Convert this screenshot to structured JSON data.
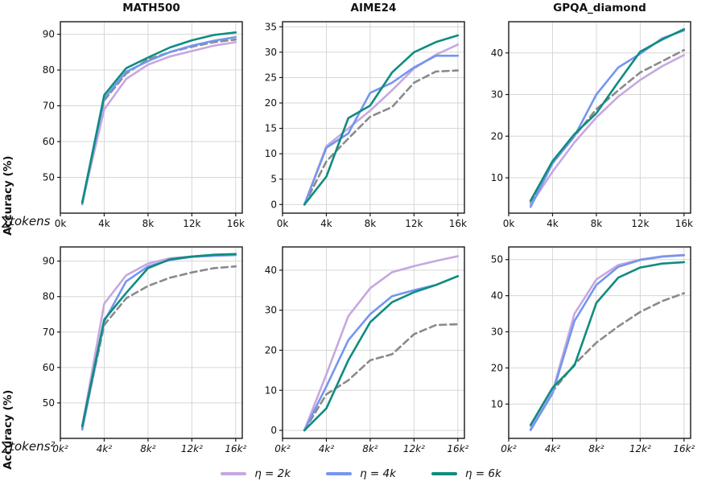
{
  "figure": {
    "background": "#ffffff"
  },
  "colors": {
    "eta2k": "#c7a7e0",
    "eta4k": "#7496ee",
    "eta6k": "#0f8c7f",
    "dashed_gray": "#8a8a8a",
    "grid": "#d6d6d6",
    "spine": "#1a1a1a"
  },
  "legend": {
    "entries": [
      {
        "label": "η = 2k",
        "color": "#c7a7e0"
      },
      {
        "label": "η = 4k",
        "color": "#7496ee"
      },
      {
        "label": "η = 6k",
        "color": "#0f8c7f"
      }
    ]
  },
  "chart_data": [
    {
      "type": "line",
      "title": "MATH500",
      "ylabel": "Accuracy (%)",
      "xlabel": "∑tokens",
      "x": [
        2,
        4,
        6,
        8,
        10,
        12,
        14,
        16
      ],
      "xlim": [
        0,
        16.6
      ],
      "ylim": [
        40,
        93.5
      ],
      "xticks": {
        "values": [
          0,
          4,
          8,
          12,
          16
        ],
        "labels": [
          "0k",
          "4k",
          "8k",
          "12k",
          "16k"
        ]
      },
      "yticks": {
        "values": [
          50,
          60,
          70,
          80,
          90
        ],
        "labels": [
          "50",
          "60",
          "70",
          "80",
          "90"
        ]
      },
      "xtick_style": "upright",
      "grid": true,
      "series": [
        {
          "name": "dashed-gray (unlabeled)",
          "color": "#8a8a8a",
          "dash": true,
          "values": [
            43,
            71.5,
            79,
            83,
            85,
            86.5,
            87.8,
            88.5
          ]
        },
        {
          "name": "η = 2k",
          "color": "#c7a7e0",
          "dash": false,
          "values": [
            43,
            69,
            77.5,
            81.5,
            83.8,
            85.3,
            86.8,
            87.8
          ]
        },
        {
          "name": "η = 4k",
          "color": "#7496ee",
          "dash": false,
          "values": [
            42.5,
            72,
            79.5,
            82.5,
            85,
            86.8,
            88.2,
            89.2
          ]
        },
        {
          "name": "η = 6k",
          "color": "#0f8c7f",
          "dash": false,
          "values": [
            43,
            73,
            80.5,
            83.5,
            86.3,
            88.3,
            89.8,
            90.5
          ]
        }
      ]
    },
    {
      "type": "line",
      "title": "AIME24",
      "ylabel": "",
      "xlabel": "",
      "x": [
        2,
        4,
        6,
        8,
        10,
        12,
        14,
        16
      ],
      "xlim": [
        0,
        16.6
      ],
      "ylim": [
        -1.7,
        36
      ],
      "xticks": {
        "values": [
          0,
          4,
          8,
          12,
          16
        ],
        "labels": [
          "0k",
          "4k",
          "8k",
          "12k",
          "16k"
        ]
      },
      "yticks": {
        "values": [
          0,
          5,
          10,
          15,
          20,
          25,
          30,
          35
        ],
        "labels": [
          "0",
          "5",
          "10",
          "15",
          "20",
          "25",
          "30",
          "35"
        ]
      },
      "xtick_style": "upright",
      "grid": true,
      "series": [
        {
          "name": "dashed-gray (unlabeled)",
          "color": "#8a8a8a",
          "dash": true,
          "values": [
            0,
            8.5,
            13,
            17.3,
            19.2,
            24,
            26.2,
            26.4
          ]
        },
        {
          "name": "η = 2k",
          "color": "#c7a7e0",
          "dash": false,
          "values": [
            0,
            11.5,
            15,
            18.5,
            22.5,
            26.8,
            29.5,
            31.5
          ]
        },
        {
          "name": "η = 4k",
          "color": "#7496ee",
          "dash": false,
          "values": [
            0,
            11.2,
            14,
            22,
            24,
            27,
            29.3,
            29.3
          ]
        },
        {
          "name": "η = 6k",
          "color": "#0f8c7f",
          "dash": false,
          "values": [
            0,
            5.5,
            17,
            19.5,
            26,
            30,
            32,
            33.3
          ]
        }
      ]
    },
    {
      "type": "line",
      "title": "GPQA_diamond",
      "ylabel": "",
      "xlabel": "",
      "x": [
        2,
        4,
        6,
        8,
        10,
        12,
        14,
        16
      ],
      "xlim": [
        0,
        16.6
      ],
      "ylim": [
        1.5,
        47.5
      ],
      "xticks": {
        "values": [
          0,
          4,
          8,
          12,
          16
        ],
        "labels": [
          "0k",
          "4k",
          "8k",
          "12k",
          "16k"
        ]
      },
      "yticks": {
        "values": [
          10,
          20,
          30,
          40
        ],
        "labels": [
          "10",
          "20",
          "30",
          "40"
        ]
      },
      "xtick_style": "upright",
      "grid": true,
      "series": [
        {
          "name": "dashed-gray (unlabeled)",
          "color": "#8a8a8a",
          "dash": true,
          "values": [
            4,
            13.5,
            20,
            26.5,
            31,
            35.3,
            38,
            40.7
          ]
        },
        {
          "name": "η = 2k",
          "color": "#c7a7e0",
          "dash": false,
          "values": [
            3.5,
            11.5,
            18.5,
            24.5,
            29.5,
            33.5,
            36.8,
            39.5
          ]
        },
        {
          "name": "η = 4k",
          "color": "#7496ee",
          "dash": false,
          "values": [
            3,
            13.5,
            20,
            30,
            36.5,
            39.8,
            43.5,
            45.4
          ]
        },
        {
          "name": "η = 6k",
          "color": "#0f8c7f",
          "dash": false,
          "values": [
            4.5,
            14,
            20.5,
            25.5,
            33,
            40.3,
            43.2,
            45.7
          ]
        }
      ]
    },
    {
      "type": "line",
      "title": "",
      "ylabel": "Accuracy (%)",
      "xlabel": "∑tokens²",
      "x": [
        2,
        4,
        6,
        8,
        10,
        12,
        14,
        16
      ],
      "xlim": [
        0,
        16.6
      ],
      "ylim": [
        40,
        94
      ],
      "xticks": {
        "values": [
          0,
          4,
          8,
          12,
          16
        ],
        "labels": [
          "0k²",
          "4k²",
          "8k²",
          "12k²",
          "16k²"
        ]
      },
      "yticks": {
        "values": [
          50,
          60,
          70,
          80,
          90
        ],
        "labels": [
          "50",
          "60",
          "70",
          "80",
          "90"
        ]
      },
      "xtick_style": "italic",
      "grid": true,
      "series": [
        {
          "name": "dashed-gray (unlabeled)",
          "color": "#8a8a8a",
          "dash": true,
          "values": [
            43,
            72,
            79.5,
            83,
            85.3,
            86.8,
            88,
            88.5
          ]
        },
        {
          "name": "η = 2k",
          "color": "#c7a7e0",
          "dash": false,
          "values": [
            43.5,
            78,
            86,
            89.3,
            90.8,
            91.3,
            91.6,
            91.8
          ]
        },
        {
          "name": "η = 4k",
          "color": "#7496ee",
          "dash": false,
          "values": [
            42.5,
            73,
            84.3,
            88.5,
            90.3,
            91.2,
            91.5,
            91.7
          ]
        },
        {
          "name": "η = 6k",
          "color": "#0f8c7f",
          "dash": false,
          "values": [
            43.5,
            73.5,
            81,
            88,
            90.5,
            91.3,
            91.8,
            92
          ]
        }
      ]
    },
    {
      "type": "line",
      "title": "",
      "ylabel": "",
      "xlabel": "",
      "x": [
        2,
        4,
        6,
        8,
        10,
        12,
        14,
        16
      ],
      "xlim": [
        0,
        16.6
      ],
      "ylim": [
        -2,
        45.8
      ],
      "xticks": {
        "values": [
          0,
          4,
          8,
          12,
          16
        ],
        "labels": [
          "0k²",
          "4k²",
          "8k²",
          "12k²",
          "16k²"
        ]
      },
      "yticks": {
        "values": [
          0,
          10,
          20,
          30,
          40
        ],
        "labels": [
          "0",
          "10",
          "20",
          "30",
          "40"
        ]
      },
      "xtick_style": "italic",
      "grid": true,
      "series": [
        {
          "name": "dashed-gray (unlabeled)",
          "color": "#8a8a8a",
          "dash": true,
          "values": [
            0,
            9,
            12.5,
            17.5,
            19,
            24,
            26.3,
            26.5
          ]
        },
        {
          "name": "η = 2k",
          "color": "#c7a7e0",
          "dash": false,
          "values": [
            0,
            14,
            28.5,
            35.5,
            39.5,
            41,
            42.3,
            43.5
          ]
        },
        {
          "name": "η = 4k",
          "color": "#7496ee",
          "dash": false,
          "values": [
            0,
            11,
            22.5,
            29,
            33.5,
            35,
            36.3,
            38.5
          ]
        },
        {
          "name": "η = 6k",
          "color": "#0f8c7f",
          "dash": false,
          "values": [
            0,
            5.5,
            17.5,
            27,
            32,
            34.5,
            36.3,
            38.5
          ]
        }
      ]
    },
    {
      "type": "line",
      "title": "",
      "ylabel": "",
      "xlabel": "",
      "x": [
        2,
        4,
        6,
        8,
        10,
        12,
        14,
        16
      ],
      "xlim": [
        0,
        16.6
      ],
      "ylim": [
        0.5,
        53.5
      ],
      "xticks": {
        "values": [
          0,
          4,
          8,
          12,
          16
        ],
        "labels": [
          "0k²",
          "4k²",
          "8k²",
          "12k²",
          "16k²"
        ]
      },
      "yticks": {
        "values": [
          10,
          20,
          30,
          40,
          50
        ],
        "labels": [
          "10",
          "20",
          "30",
          "40",
          "50"
        ]
      },
      "xtick_style": "italic",
      "grid": true,
      "series": [
        {
          "name": "dashed-gray (unlabeled)",
          "color": "#8a8a8a",
          "dash": true,
          "values": [
            3,
            13.5,
            21,
            27,
            31.5,
            35.5,
            38.5,
            40.7
          ]
        },
        {
          "name": "η = 2k",
          "color": "#c7a7e0",
          "dash": false,
          "values": [
            4,
            13.5,
            35,
            44.5,
            48.5,
            50,
            50.9,
            51.3
          ]
        },
        {
          "name": "η = 4k",
          "color": "#7496ee",
          "dash": false,
          "values": [
            2.8,
            13,
            33,
            43,
            48,
            49.9,
            50.8,
            51.2
          ]
        },
        {
          "name": "η = 6k",
          "color": "#0f8c7f",
          "dash": false,
          "values": [
            4.2,
            14.5,
            20.7,
            38,
            45,
            47.8,
            48.9,
            49.3
          ]
        }
      ]
    }
  ]
}
